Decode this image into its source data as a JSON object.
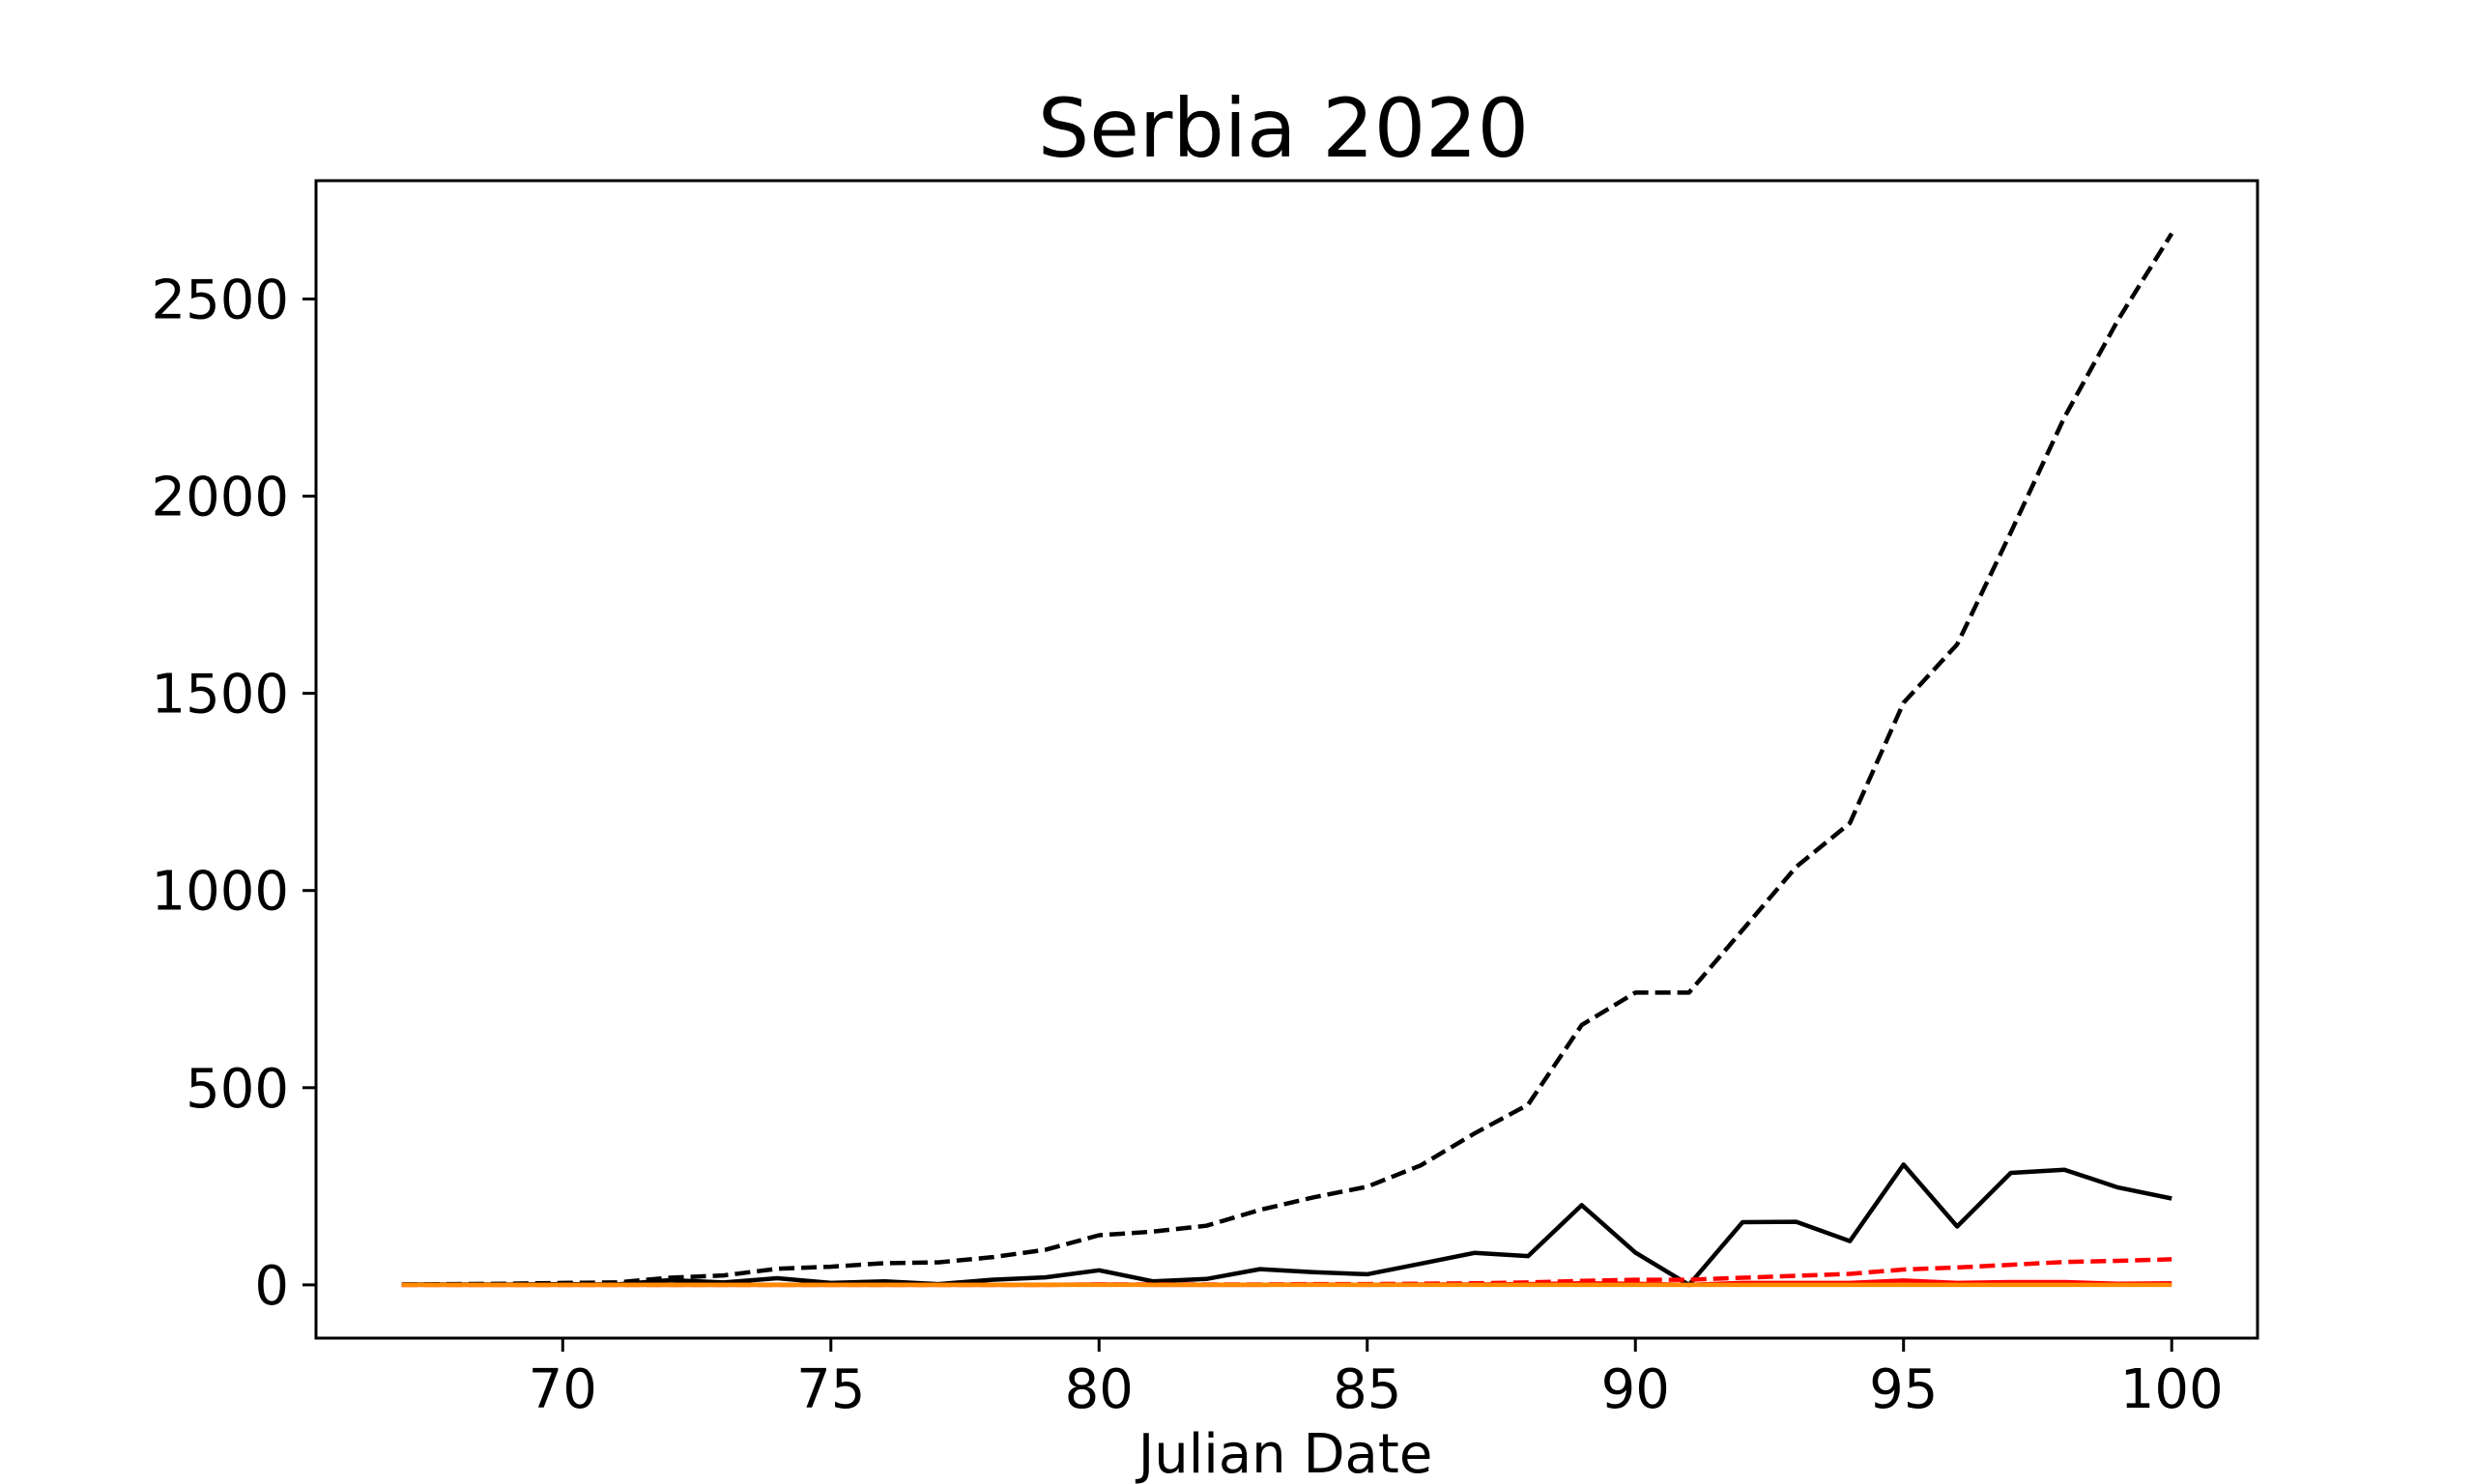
{
  "chart_data": {
    "type": "line",
    "title": "Serbia 2020",
    "xlabel": "Julian Date",
    "ylabel": "",
    "xlim": [
      65.4,
      101.6
    ],
    "ylim": [
      -135,
      2800
    ],
    "xticks": [
      70,
      75,
      80,
      85,
      90,
      95,
      100
    ],
    "yticks": [
      0,
      500,
      1000,
      1500,
      2000,
      2500
    ],
    "grid": false,
    "x": [
      67,
      68,
      69,
      70,
      71,
      72,
      73,
      74,
      75,
      76,
      77,
      78,
      79,
      80,
      81,
      82,
      83,
      84,
      85,
      86,
      87,
      88,
      89,
      90,
      91,
      92,
      93,
      94,
      95,
      96,
      97,
      98,
      99,
      100
    ],
    "series": [
      {
        "color": "#000000",
        "dash": "dashed",
        "values": [
          1,
          2,
          3,
          5,
          6,
          18,
          24,
          41,
          46,
          55,
          57,
          70,
          89,
          126,
          135,
          150,
          190,
          222,
          249,
          303,
          384,
          457,
          659,
          741,
          741,
          900,
          1060,
          1171,
          1476,
          1624,
          1908,
          2200,
          2447,
          2666
        ]
      },
      {
        "color": "#000000",
        "dash": "solid",
        "values": [
          1,
          1,
          1,
          2,
          1,
          12,
          6,
          17,
          5,
          9,
          2,
          13,
          19,
          37,
          9,
          15,
          40,
          32,
          27,
          54,
          81,
          73,
          202,
          82,
          0,
          159,
          160,
          111,
          305,
          148,
          284,
          292,
          247,
          219
        ]
      },
      {
        "color": "#ff0000",
        "dash": "dashed",
        "values": [
          0,
          0,
          0,
          0,
          0,
          0,
          0,
          0,
          0,
          0,
          0,
          0,
          0,
          1,
          1,
          1,
          1,
          2,
          2,
          3,
          4,
          6,
          10,
          13,
          13,
          18,
          23,
          28,
          39,
          44,
          51,
          58,
          61,
          65
        ]
      },
      {
        "color": "#ff0000",
        "dash": "solid",
        "values": [
          0,
          0,
          0,
          0,
          0,
          0,
          0,
          0,
          0,
          0,
          0,
          0,
          0,
          1,
          0,
          0,
          0,
          1,
          0,
          1,
          1,
          2,
          4,
          3,
          0,
          5,
          5,
          5,
          11,
          5,
          7,
          7,
          3,
          4
        ]
      },
      {
        "color": "#ff8c00",
        "dash": "solid",
        "values": [
          0,
          0,
          0,
          0,
          0,
          0,
          0,
          0,
          0,
          0,
          0,
          0,
          0,
          0,
          0,
          0,
          0,
          0,
          0,
          0,
          0,
          0,
          0,
          0,
          0,
          0,
          0,
          0,
          0,
          0,
          0,
          0,
          0,
          0
        ]
      }
    ]
  }
}
